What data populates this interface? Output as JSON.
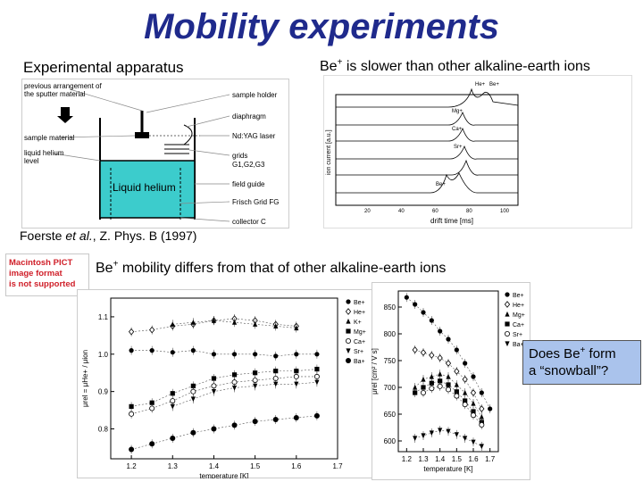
{
  "title": "Mobility experiments",
  "left_heading": "Experimental apparatus",
  "right_heading": {
    "ion": "Be",
    "charge": "+",
    "rest": " is slower than other alkaline-earth ions"
  },
  "citation": {
    "author": "Foerste ",
    "etal": "et al.",
    "rest": ", Z. Phys. B (1997)"
  },
  "pict_placeholder": [
    "Macintosh PICT",
    "image format",
    "is not supported"
  ],
  "mobility_statement": {
    "ion": "Be",
    "charge": "+",
    "rest": " mobility differs from that of other alkaline-earth ions"
  },
  "question": {
    "line1_a": "Does Be",
    "charge": "+",
    "line1_b": " form",
    "line2": "a “snowball”?"
  },
  "apparatus": {
    "labels_left": [
      "previous arrangement of",
      "the sputter material",
      "sample material",
      "liquid helium",
      "level"
    ],
    "labels_right": [
      "sample holder",
      "diaphragm",
      "Nd:YAG laser",
      "grids",
      "G1,G2,G3",
      "field guide",
      "Frisch Grid FG",
      "collector C"
    ],
    "liquid_label": "Liquid helium",
    "liquid_color": "#3ccccc"
  },
  "spectra": {
    "ylabel": "ion current [a.u.]",
    "xlabel": "drift time [ms]",
    "xticks": [
      "20",
      "40",
      "60",
      "80",
      "100"
    ],
    "peak_labels": [
      "He+",
      "Be+",
      "Mg+",
      "Ca+",
      "Sr+",
      "Be+"
    ]
  },
  "chart_data": [
    {
      "type": "scatter",
      "xlabel": "temperature [K]",
      "ylabel": "μrel = μHe+ / μion",
      "xlim": [
        1.15,
        1.7
      ],
      "ylim": [
        0.72,
        1.15
      ],
      "xticks": [
        "1.2",
        "1.3",
        "1.4",
        "1.5",
        "1.6",
        "1.7"
      ],
      "yticks": [
        "0.8",
        "0.9",
        "1.0",
        "1.1"
      ],
      "legend": [
        "Be+",
        "He+",
        "K+",
        "Mg+",
        "Ca+",
        "Sr+",
        "Ba+"
      ],
      "series": [
        {
          "name": "He+",
          "x": [
            1.2,
            1.25,
            1.3,
            1.35,
            1.4,
            1.45,
            1.5,
            1.55,
            1.6,
            1.65
          ],
          "y": [
            1.01,
            1.01,
            1.005,
            1.01,
            1.0,
            1.0,
            1.0,
            0.995,
            1.0,
            1.0
          ]
        },
        {
          "name": "Be+",
          "x": [
            1.2,
            1.25,
            1.3,
            1.35,
            1.4,
            1.45,
            1.5,
            1.55,
            1.6
          ],
          "y": [
            1.06,
            1.065,
            1.075,
            1.08,
            1.09,
            1.095,
            1.09,
            1.08,
            1.075
          ]
        },
        {
          "name": "K+",
          "x": [
            1.3,
            1.35,
            1.4,
            1.45,
            1.5,
            1.55,
            1.6
          ],
          "y": [
            1.08,
            1.085,
            1.09,
            1.085,
            1.08,
            1.075,
            1.07
          ]
        },
        {
          "name": "Mg+",
          "x": [
            1.2,
            1.25,
            1.3,
            1.35,
            1.4,
            1.45,
            1.5,
            1.55,
            1.6,
            1.65
          ],
          "y": [
            0.86,
            0.87,
            0.895,
            0.915,
            0.935,
            0.945,
            0.95,
            0.955,
            0.955,
            0.96
          ]
        },
        {
          "name": "Ca+",
          "x": [
            1.2,
            1.25,
            1.3,
            1.35,
            1.4,
            1.45,
            1.5,
            1.55,
            1.6,
            1.65
          ],
          "y": [
            0.84,
            0.855,
            0.875,
            0.9,
            0.915,
            0.925,
            0.93,
            0.935,
            0.94,
            0.94
          ]
        },
        {
          "name": "Sr+",
          "x": [
            1.3,
            1.35,
            1.4,
            1.45,
            1.5,
            1.55,
            1.6,
            1.65
          ],
          "y": [
            0.86,
            0.88,
            0.9,
            0.91,
            0.915,
            0.92,
            0.92,
            0.925
          ]
        },
        {
          "name": "Ba+",
          "x": [
            1.2,
            1.25,
            1.3,
            1.35,
            1.4,
            1.45,
            1.5,
            1.55,
            1.6,
            1.65
          ],
          "y": [
            0.745,
            0.76,
            0.775,
            0.79,
            0.8,
            0.81,
            0.82,
            0.825,
            0.83,
            0.835
          ]
        }
      ]
    },
    {
      "type": "scatter",
      "xlabel": "temperature [K]",
      "ylabel": "μrel [cm² / V s]",
      "xlim": [
        1.15,
        1.75
      ],
      "ylim": [
        580,
        880
      ],
      "xticks": [
        "1.2",
        "1.3",
        "1.4",
        "1.5",
        "1.6",
        "1.7"
      ],
      "yticks": [
        "600",
        "650",
        "700",
        "750",
        "800",
        "850"
      ],
      "legend": [
        "Be+",
        "He+",
        "Mg+",
        "Ca+",
        "Sr+",
        "Ba+"
      ],
      "series": [
        {
          "name": "He+",
          "x": [
            1.2,
            1.25,
            1.3,
            1.35,
            1.4,
            1.45,
            1.5,
            1.55,
            1.6,
            1.65,
            1.7
          ],
          "y": [
            868,
            855,
            840,
            825,
            805,
            790,
            770,
            745,
            720,
            690,
            660
          ]
        },
        {
          "name": "Be+",
          "x": [
            1.25,
            1.3,
            1.35,
            1.4,
            1.45,
            1.5,
            1.55,
            1.6,
            1.65
          ],
          "y": [
            770,
            765,
            760,
            755,
            745,
            730,
            715,
            690,
            660
          ]
        },
        {
          "name": "Mg+",
          "x": [
            1.25,
            1.3,
            1.35,
            1.4,
            1.45,
            1.5,
            1.55,
            1.6,
            1.65
          ],
          "y": [
            700,
            715,
            720,
            725,
            720,
            705,
            690,
            670,
            645
          ]
        },
        {
          "name": "Ca+",
          "x": [
            1.25,
            1.3,
            1.35,
            1.4,
            1.45,
            1.5,
            1.55,
            1.6,
            1.65
          ],
          "y": [
            690,
            700,
            708,
            712,
            705,
            692,
            675,
            655,
            635
          ]
        },
        {
          "name": "Sr+",
          "x": [
            1.3,
            1.35,
            1.4,
            1.45,
            1.5,
            1.55,
            1.6,
            1.65
          ],
          "y": [
            690,
            698,
            702,
            696,
            684,
            668,
            648,
            630
          ]
        },
        {
          "name": "Ba+",
          "x": [
            1.25,
            1.3,
            1.35,
            1.4,
            1.45,
            1.5,
            1.55,
            1.6,
            1.65
          ],
          "y": [
            605,
            610,
            615,
            620,
            618,
            612,
            605,
            598,
            590
          ]
        }
      ]
    }
  ]
}
